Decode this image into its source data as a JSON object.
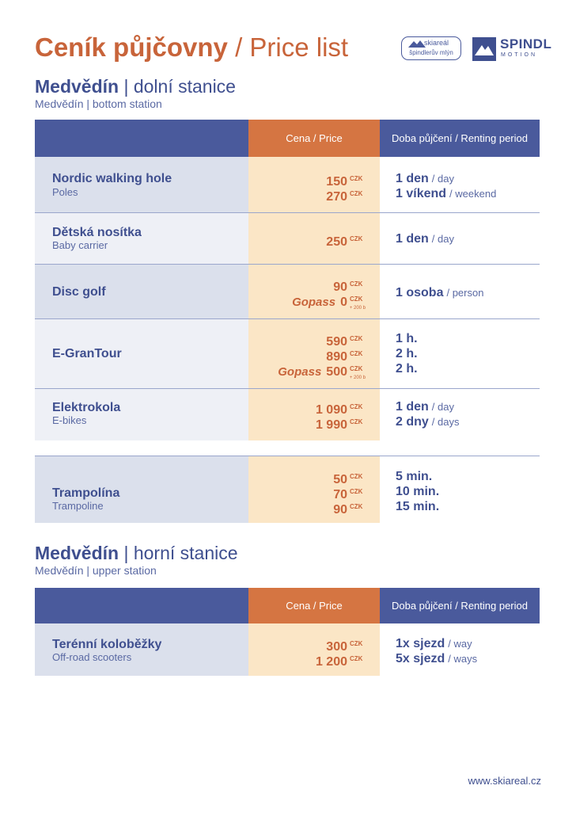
{
  "header": {
    "title_cz": "Ceník půjčovny",
    "title_en": "/ Price list",
    "logo_skiareal_top": "skiareál",
    "logo_skiareal_bottom": "špindlerův mlýn",
    "logo_spindl": "SPINDL",
    "logo_spindl_sub": "MOTION"
  },
  "section1": {
    "title_bold": "Medvědín",
    "title_rest": " | dolní stanice",
    "subtitle": "Medvědín | bottom station",
    "col_price": "Cena / Price",
    "col_period": "Doba půjčení / Renting period",
    "rows": [
      {
        "name": "Nordic walking hole",
        "sub": "Poles",
        "prices": [
          "150",
          "270"
        ],
        "unit": "CZK",
        "periods": [
          {
            "cz": "1 den",
            "en": "/ day"
          },
          {
            "cz": "1 víkend",
            "en": "/ weekend"
          }
        ]
      },
      {
        "name": "Dětská nosítka",
        "sub": "Baby carrier",
        "prices": [
          "250"
        ],
        "unit": "CZK",
        "periods": [
          {
            "cz": "1 den",
            "en": "/ day"
          }
        ]
      },
      {
        "name": "Disc golf",
        "sub": "",
        "prices": [
          "90",
          "0"
        ],
        "gopass": "Gopass",
        "plus": "+ 200 b",
        "unit": "CZK",
        "periods": [
          {
            "cz": "1 osoba",
            "en": "/ person"
          }
        ]
      },
      {
        "name": "E-GranTour",
        "sub": "",
        "prices": [
          "590",
          "890",
          "500"
        ],
        "gopass": "Gopass",
        "plus": "+ 200 b",
        "unit": "CZK",
        "periods": [
          {
            "cz": "1 h.",
            "en": ""
          },
          {
            "cz": "2 h.",
            "en": ""
          },
          {
            "cz": "2 h.",
            "en": ""
          }
        ]
      },
      {
        "name": "Elektrokola",
        "sub": "E-bikes",
        "prices": [
          "1 090",
          "1 990"
        ],
        "unit": "CZK",
        "periods": [
          {
            "cz": "1 den",
            "en": "/ day"
          },
          {
            "cz": "2 dny",
            "en": "/ days"
          }
        ]
      },
      {
        "name": "Trampolína",
        "sub": "Trampoline",
        "prices": [
          "50",
          "70",
          "90"
        ],
        "unit": "CZK",
        "periods": [
          {
            "cz": "5 min.",
            "en": ""
          },
          {
            "cz": "10 min.",
            "en": ""
          },
          {
            "cz": "15 min.",
            "en": ""
          }
        ]
      }
    ]
  },
  "section2": {
    "title_bold": "Medvědín",
    "title_rest": " | horní stanice",
    "subtitle": "Medvědín | upper station",
    "col_price": "Cena / Price",
    "col_period": "Doba půjčení / Renting period",
    "rows": [
      {
        "name": "Terénní koloběžky",
        "sub": "Off-road scooters",
        "prices": [
          "300",
          "1 200"
        ],
        "unit": "CZK",
        "periods": [
          {
            "cz": "1x sjezd",
            "en": "/ way"
          },
          {
            "cz": "5x sjezd",
            "en": "/ ways"
          }
        ]
      }
    ]
  },
  "footer": {
    "url": "www.skiareal.cz"
  },
  "colors": {
    "accent": "#c8643a",
    "navy": "#4a5a9c",
    "price_bg": "#fbe6c6",
    "name_bg": "#dbe0ec"
  }
}
